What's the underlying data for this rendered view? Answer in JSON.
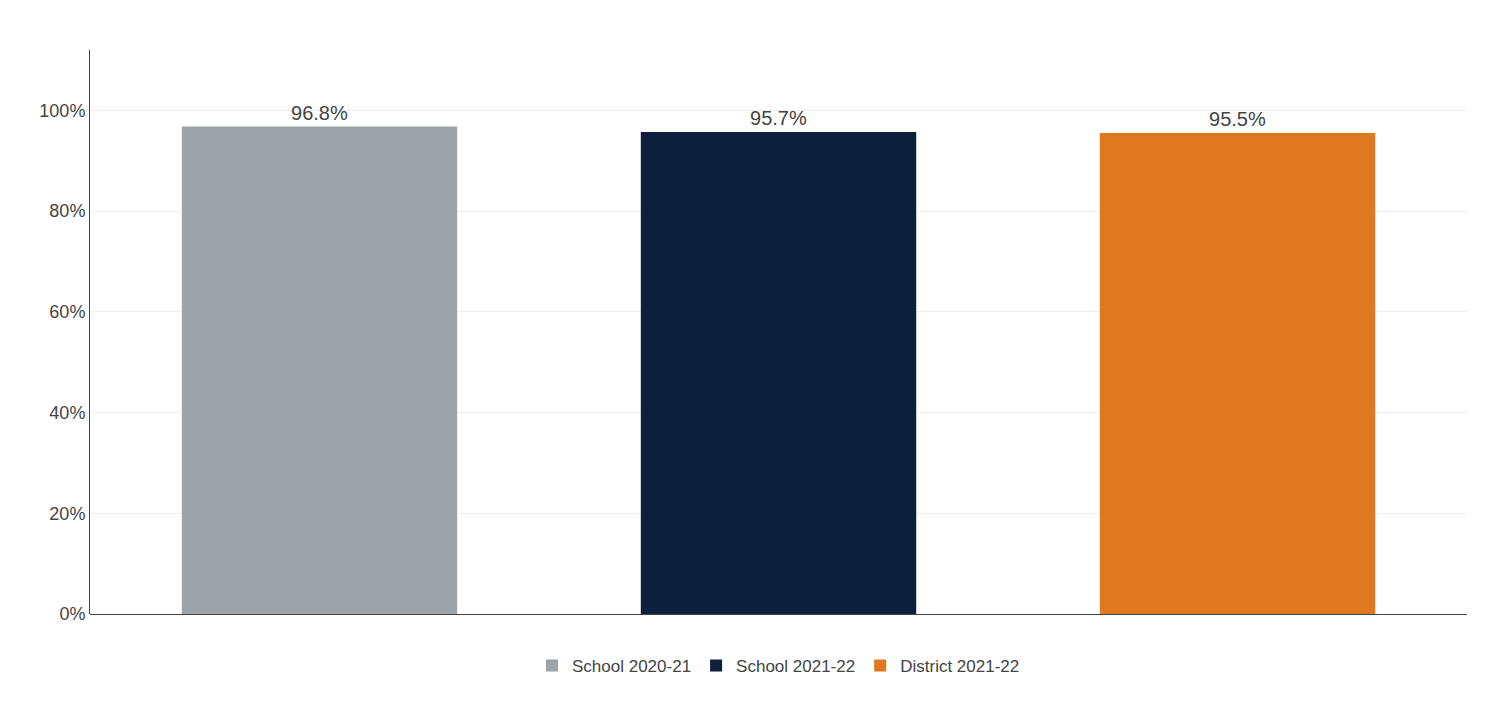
{
  "chart_data": {
    "type": "bar",
    "categories": [
      "School 2020-21",
      "School 2021-22",
      "District 2021-22"
    ],
    "values": [
      0.968,
      0.957,
      0.955
    ],
    "value_labels": [
      "96.8%",
      "95.7%",
      "95.5%"
    ],
    "data_labels": true,
    "colors": [
      "#9EA3A8",
      "#0D1F3C",
      "#E07820"
    ],
    "ylim": [
      0,
      1.12
    ],
    "yticks": [
      {
        "value": 0,
        "label": "0%"
      },
      {
        "value": 0.2,
        "label": "20%"
      },
      {
        "value": 0.4,
        "label": "40%"
      },
      {
        "value": 0.6,
        "label": "60%"
      },
      {
        "value": 0.8,
        "label": "80%"
      },
      {
        "value": 1.0,
        "label": "100%"
      }
    ],
    "grid": true,
    "legend": "bottom",
    "tick_labels": "y"
  }
}
